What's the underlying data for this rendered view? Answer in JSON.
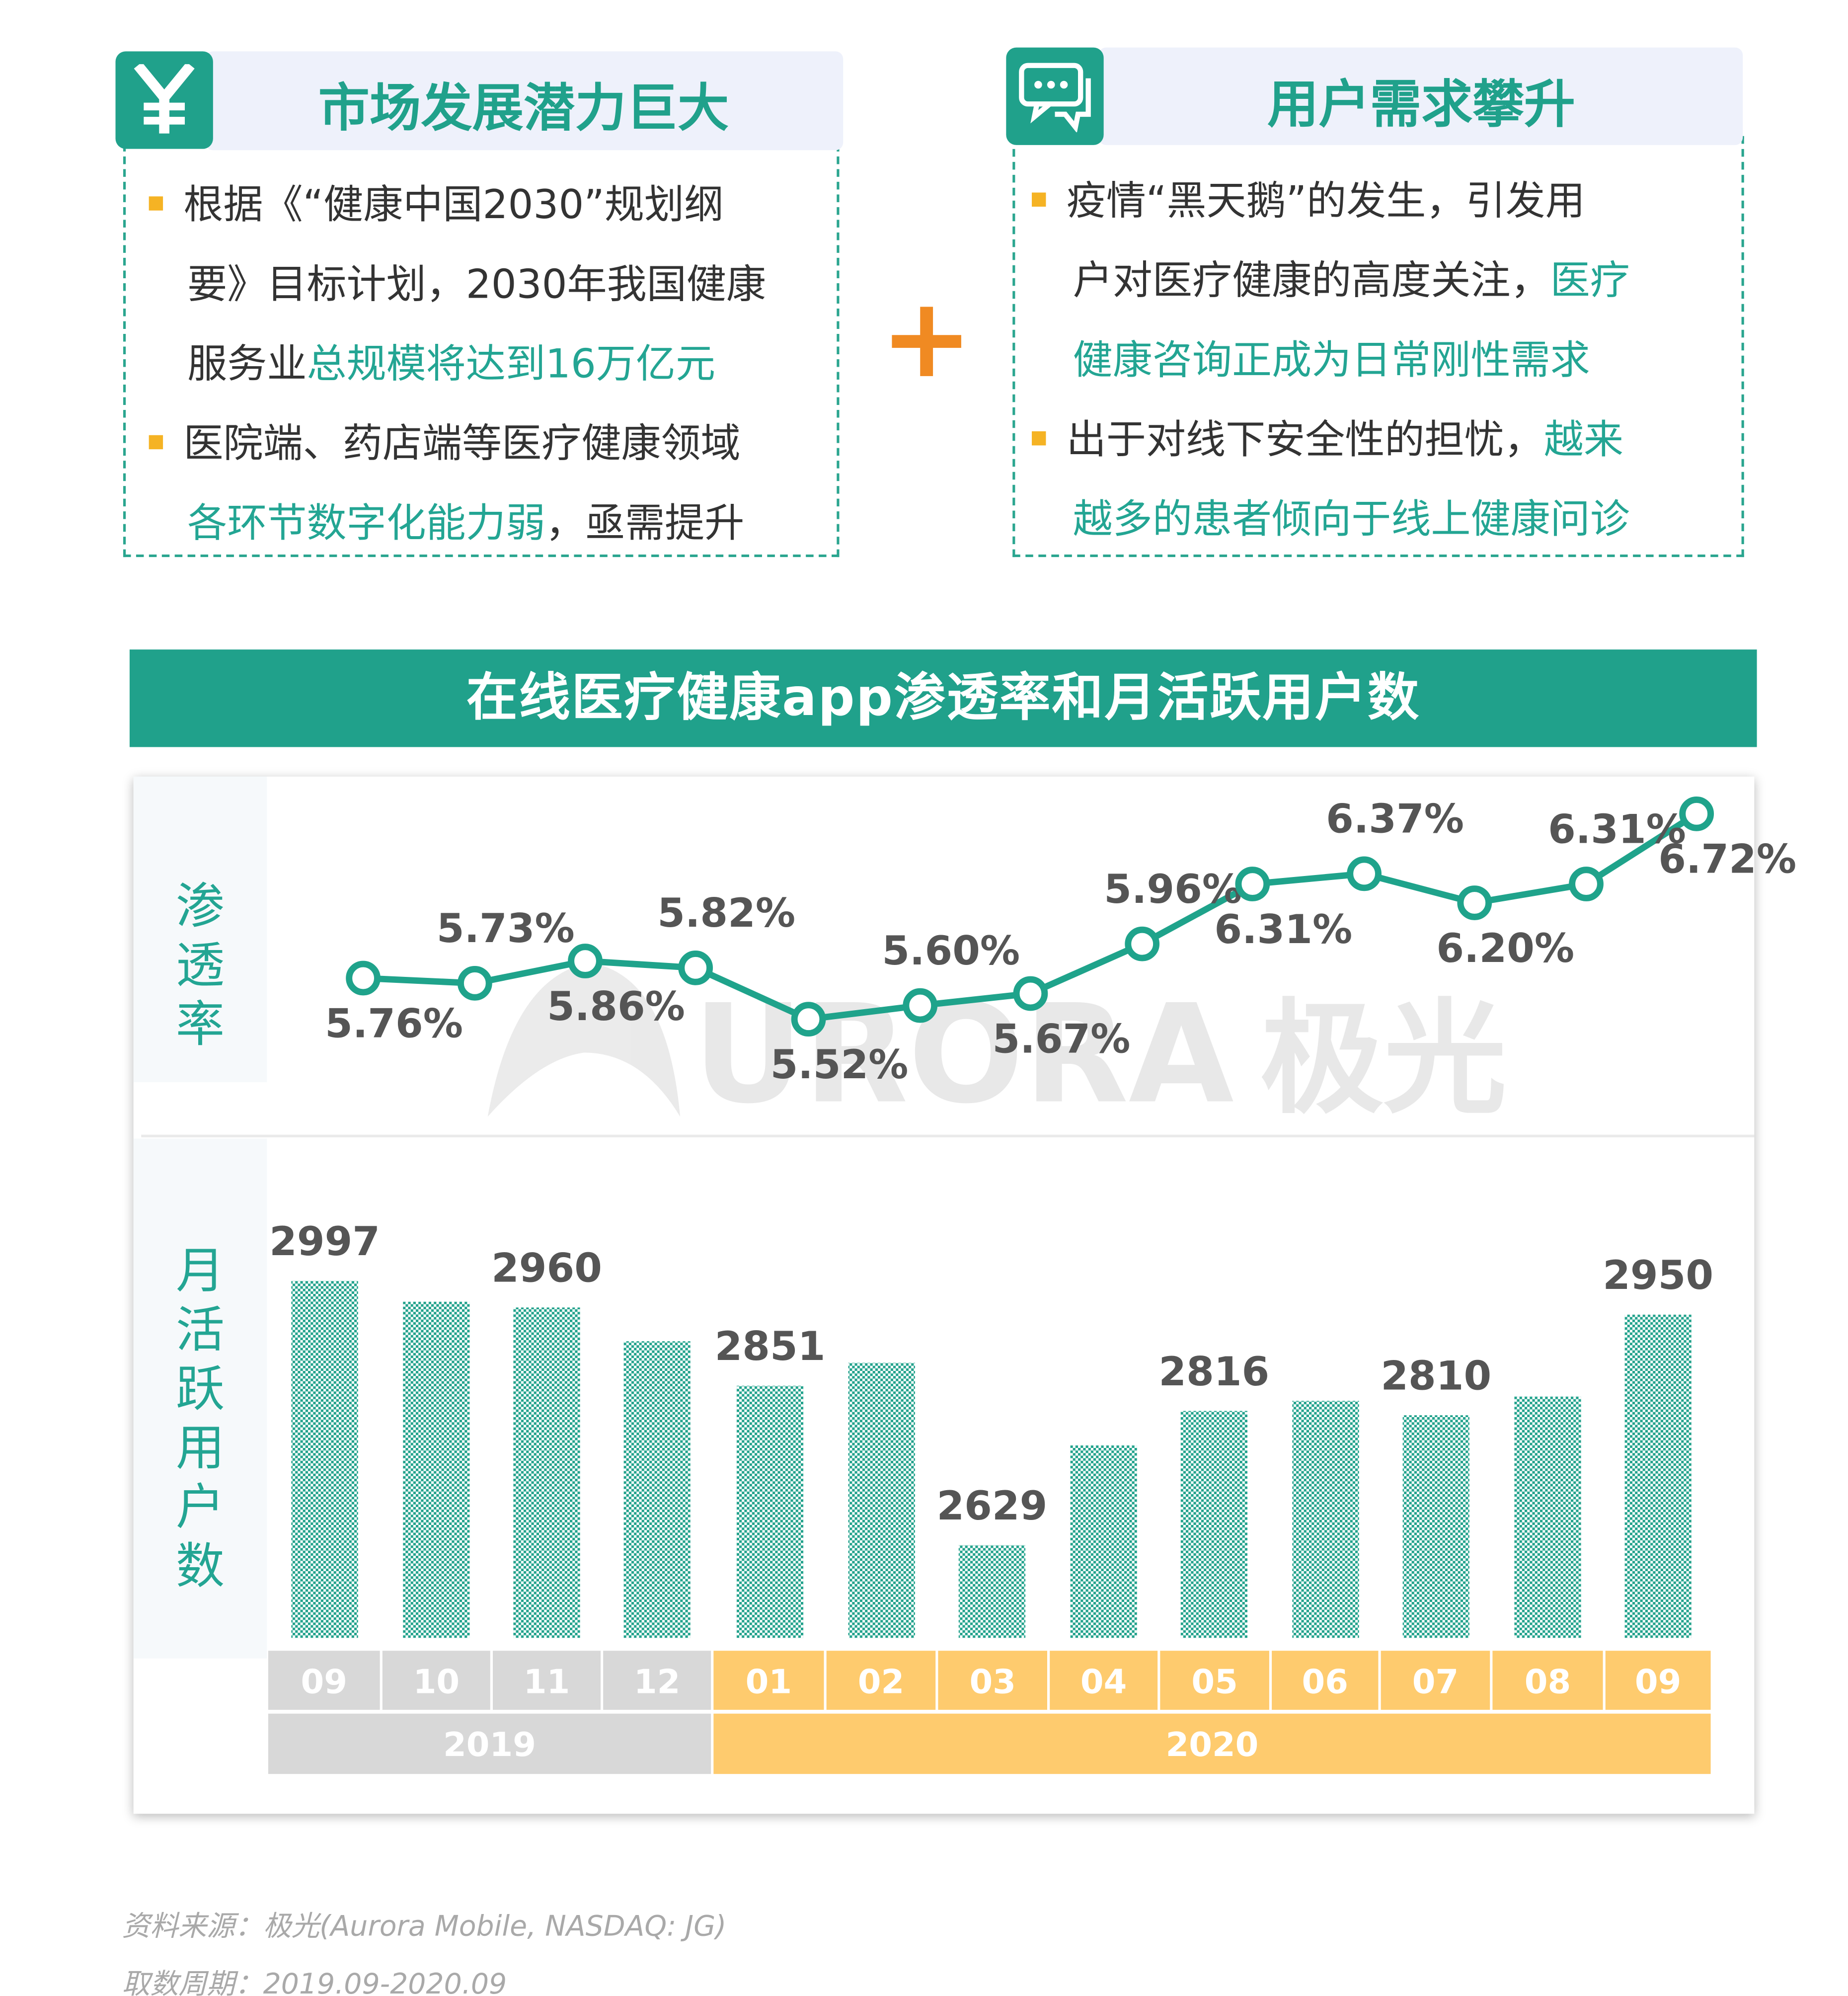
{
  "panels": {
    "left": {
      "title": "市场发展潜力巨大",
      "icon": "yen-icon",
      "lines": [
        {
          "bullet": true,
          "parts": [
            {
              "text": "根据《“健康中国2030”规划纲",
              "hl": false
            }
          ]
        },
        {
          "bullet": false,
          "parts": [
            {
              "text": "要》目标计划，2030年我国健康",
              "hl": false
            }
          ]
        },
        {
          "bullet": false,
          "parts": [
            {
              "text": "服务业",
              "hl": false
            },
            {
              "text": "总规模将达到16万亿元",
              "hl": true
            }
          ]
        },
        {
          "bullet": true,
          "parts": [
            {
              "text": "医院端、药店端等医疗健康领域",
              "hl": false
            }
          ]
        },
        {
          "bullet": false,
          "parts": [
            {
              "text": "各环节数字化能力弱",
              "hl": true
            },
            {
              "text": "，亟需提升",
              "hl": false
            }
          ]
        }
      ]
    },
    "right": {
      "title": "用户需求攀升",
      "icon": "chat-bubbles-icon",
      "lines": [
        {
          "bullet": true,
          "parts": [
            {
              "text": "疫情“黑天鹅”的发生，引发用",
              "hl": false
            }
          ]
        },
        {
          "bullet": false,
          "parts": [
            {
              "text": "户对医疗健康的高度关注，",
              "hl": false
            },
            {
              "text": "医疗",
              "hl": true
            }
          ]
        },
        {
          "bullet": false,
          "parts": [
            {
              "text": "健康咨询正成为日常刚性需求",
              "hl": true
            }
          ]
        },
        {
          "bullet": true,
          "parts": [
            {
              "text": "出于对线下安全性的担忧，",
              "hl": false
            },
            {
              "text": "越来",
              "hl": true
            }
          ]
        },
        {
          "bullet": false,
          "parts": [
            {
              "text": "越多的患者倾向于线上健康问诊",
              "hl": true
            }
          ]
        }
      ]
    },
    "plus_icon": "plus-icon"
  },
  "chart_title": "在线医疗健康app渗透率和月活跃用户数",
  "watermark": {
    "text": "URORA",
    "brand": "极光"
  },
  "side_labels": {
    "penetration": "渗透率",
    "mau": "月活跃用户数"
  },
  "chart_data": {
    "type": "bar",
    "categories": [
      "09",
      "10",
      "11",
      "12",
      "01",
      "02",
      "03",
      "04",
      "05",
      "06",
      "07",
      "08",
      "09"
    ],
    "years": [
      {
        "label": "2019",
        "count": 4
      },
      {
        "label": "2020",
        "count": 9
      }
    ],
    "series": [
      {
        "type": "line",
        "values": [
          5.76,
          5.73,
          5.86,
          5.82,
          5.52,
          5.6,
          5.67,
          5.96,
          6.31,
          6.37,
          6.2,
          6.31,
          6.72
        ],
        "labels": [
          "5.76%",
          "5.73%",
          "5.86%",
          "5.82%",
          "5.52%",
          "5.60%",
          "5.67%",
          "5.96%",
          "6.31%",
          "6.37%",
          "6.20%",
          "6.31%",
          "6.72%"
        ],
        "label_pos": [
          "below",
          "above",
          "below",
          "above",
          "below",
          "above",
          "below",
          "above",
          "below",
          "above",
          "below",
          "above",
          "below"
        ],
        "color": "#1fa38b"
      },
      {
        "type": "bar",
        "values": [
          2997,
          2968,
          2960,
          2913,
          2851,
          2883,
          2629,
          2768,
          2816,
          2830,
          2810,
          2836,
          2950
        ],
        "labels": [
          "2997",
          "",
          "2960",
          "",
          "2851",
          "",
          "2629",
          "",
          "2816",
          "",
          "2810",
          "",
          "2950"
        ],
        "color": "#22a28c"
      }
    ],
    "ylim_line": [
      5.4,
      6.8
    ],
    "ylim_bar": [
      2500,
      3020
    ],
    "colors": {
      "year_2019": "#d8d8d8",
      "year_2020": "#fecb6e",
      "accent": "#20a18b",
      "bullet": "#f5b324"
    }
  },
  "footnotes": [
    "资料来源：极光(Aurora Mobile, NASDAQ: JG)",
    "取数周期：2019.09-2020.09"
  ]
}
